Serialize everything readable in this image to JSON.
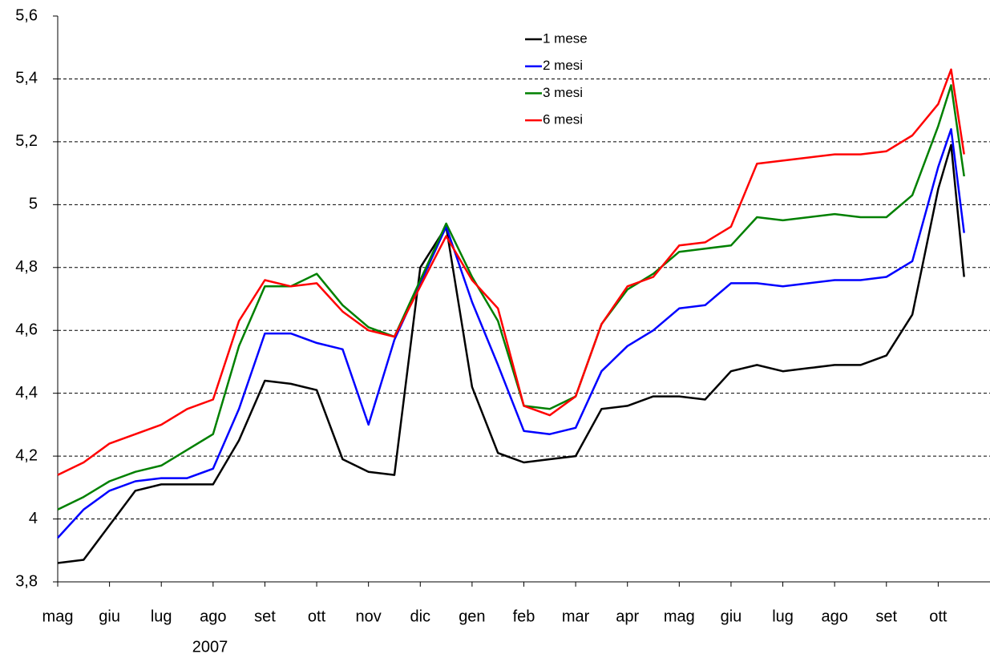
{
  "chart_data": {
    "type": "line",
    "x": [
      0,
      0.5,
      1,
      1.5,
      2,
      2.5,
      3,
      3.5,
      4,
      4.5,
      5,
      5.5,
      6,
      6.5,
      7,
      7.5,
      8,
      8.5,
      9,
      9.5,
      10,
      10.5,
      11,
      11.5,
      12,
      12.5,
      13,
      13.5,
      14,
      14.5,
      15,
      15.5,
      16,
      16.5,
      17,
      17.25,
      17.5
    ],
    "xlim": [
      0,
      18
    ],
    "xticks": [
      {
        "value": 0,
        "label": "mag"
      },
      {
        "value": 1,
        "label": "giu"
      },
      {
        "value": 2,
        "label": "lug"
      },
      {
        "value": 3,
        "label": "ago"
      },
      {
        "value": 4,
        "label": "set"
      },
      {
        "value": 5,
        "label": "ott"
      },
      {
        "value": 6,
        "label": "nov"
      },
      {
        "value": 7,
        "label": "dic"
      },
      {
        "value": 8,
        "label": "gen"
      },
      {
        "value": 9,
        "label": "feb"
      },
      {
        "value": 10,
        "label": "mar"
      },
      {
        "value": 11,
        "label": "apr"
      },
      {
        "value": 12,
        "label": "mag"
      },
      {
        "value": 13,
        "label": "giu"
      },
      {
        "value": 14,
        "label": "lug"
      },
      {
        "value": 15,
        "label": "ago"
      },
      {
        "value": 16,
        "label": "set"
      },
      {
        "value": 17,
        "label": "ott"
      }
    ],
    "year_label": "2007",
    "ylim": [
      3.8,
      5.6
    ],
    "yticks": [
      {
        "value": 3.8,
        "label": "3,8"
      },
      4,
      {
        "value": 4.2,
        "label": "4,2"
      },
      {
        "value": 4.4,
        "label": "4,4"
      },
      {
        "value": 4.6,
        "label": "4,6"
      },
      {
        "value": 4.8,
        "label": "4,8"
      },
      5,
      {
        "value": 5.2,
        "label": "5,2"
      },
      {
        "value": 5.4,
        "label": "5,4"
      },
      {
        "value": 5.6,
        "label": "5,6"
      }
    ],
    "grid": true,
    "legend": "top-center",
    "series": [
      {
        "name": "1 mese",
        "color": "#000000",
        "values": [
          3.86,
          3.87,
          3.98,
          4.09,
          4.11,
          4.11,
          4.11,
          4.25,
          4.44,
          4.43,
          4.41,
          4.19,
          4.15,
          4.14,
          4.8,
          4.93,
          4.42,
          4.21,
          4.18,
          4.19,
          4.2,
          4.35,
          4.36,
          4.39,
          4.39,
          4.38,
          4.47,
          4.49,
          4.47,
          4.48,
          4.49,
          4.49,
          4.52,
          4.65,
          5.05,
          5.19,
          4.77
        ]
      },
      {
        "name": "2 mesi",
        "color": "#0000ff",
        "values": [
          3.94,
          4.03,
          4.09,
          4.12,
          4.13,
          4.13,
          4.16,
          4.35,
          4.59,
          4.59,
          4.56,
          4.54,
          4.3,
          4.57,
          4.75,
          4.93,
          4.69,
          4.49,
          4.28,
          4.27,
          4.29,
          4.47,
          4.55,
          4.6,
          4.67,
          4.68,
          4.75,
          4.75,
          4.74,
          4.75,
          4.76,
          4.76,
          4.77,
          4.82,
          5.12,
          5.24,
          4.91
        ]
      },
      {
        "name": "3 mesi",
        "color": "#008000",
        "values": [
          4.03,
          4.07,
          4.12,
          4.15,
          4.17,
          4.22,
          4.27,
          4.55,
          4.74,
          4.74,
          4.78,
          4.68,
          4.61,
          4.58,
          4.76,
          4.94,
          4.77,
          4.63,
          4.36,
          4.35,
          4.39,
          4.62,
          4.73,
          4.78,
          4.85,
          4.86,
          4.87,
          4.96,
          4.95,
          4.96,
          4.97,
          4.96,
          4.96,
          5.03,
          5.25,
          5.38,
          5.09
        ]
      },
      {
        "name": "6 mesi",
        "color": "#ff0000",
        "values": [
          4.14,
          4.18,
          4.24,
          4.27,
          4.3,
          4.35,
          4.38,
          4.63,
          4.76,
          4.74,
          4.75,
          4.66,
          4.6,
          4.58,
          4.74,
          4.9,
          4.76,
          4.67,
          4.36,
          4.33,
          4.39,
          4.62,
          4.74,
          4.77,
          4.87,
          4.88,
          4.93,
          5.13,
          5.14,
          5.15,
          5.16,
          5.16,
          5.17,
          5.22,
          5.32,
          5.43,
          5.16
        ]
      }
    ]
  }
}
